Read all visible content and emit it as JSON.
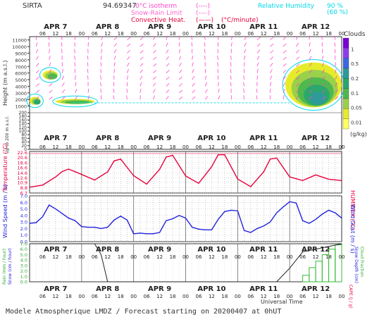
{
  "header": {
    "station": "SIRTA",
    "coords": "94.69347",
    "legend_left": [
      {
        "label": "0°C isotherm",
        "marker": "(----)",
        "color": "#ff44cc"
      },
      {
        "label": "Snow-Rain Limit",
        "marker": "(----)",
        "color": "#ff66cc"
      },
      {
        "label": "Convective Heat.",
        "marker": "(——)",
        "unit": "(°C/minute)",
        "color": "#e8003c"
      }
    ],
    "legend_right": [
      {
        "label": "Relative Humidity",
        "value": "90 %",
        "color": "#00d8e8"
      },
      {
        "label": "",
        "value": "(60 %)",
        "color": "#00d8e8"
      }
    ]
  },
  "days": [
    "APR 7",
    "APR 8",
    "APR 9",
    "APR 10",
    "APR 11",
    "APR 12"
  ],
  "hour_ticks": [
    "06",
    "12",
    "18",
    "00"
  ],
  "footer": {
    "title": "Modele Atmospherique LMDZ / Forecast starting on 20200407 at 0hUT",
    "xaxis": "Universal Time"
  },
  "colorbar": {
    "title": "Clouds",
    "unit": "(g/kg)",
    "ticks": [
      "1",
      "0.5",
      "0.2",
      "0.1",
      "0.05",
      "0.01"
    ],
    "colors": [
      "#7a00d8",
      "#8e3cf0",
      "#3a68e0",
      "#2e9a9a",
      "#2aa76c",
      "#4fb84f",
      "#9ad04a",
      "#e6ec2a",
      "#ffff60"
    ]
  },
  "panel_labels": {
    "height": "Height (m a.s.l.)",
    "height_low": "Up to 200 m a.s.l.",
    "temperature": "Temperature (°C)",
    "humidex": "HUMIDEX (°C)",
    "wind_speed": "Wind Speed (m / s)",
    "wind_gust": "Wind Gust (m / s)",
    "rain": "Rain (mm / hour)",
    "snow": "Snow (cm / hour)",
    "cape": "CAPE (J / g)",
    "snow_depth": "Snow Depth (cm)",
    "cloud_fraction": "Cloud Fraction"
  },
  "chart_data": [
    {
      "type": "heatmap",
      "title": "Clouds / Relative Humidity / Wind",
      "ylabel": "Height (m a.s.l.)",
      "yticks": [
        11000,
        10000,
        9000,
        8000,
        7000,
        6000,
        5000,
        4000,
        3000,
        2000,
        1000
      ],
      "yticks_low": [
        200,
        180,
        160,
        140,
        120,
        100,
        80,
        60,
        40,
        20,
        0
      ],
      "cloud_blobs": [
        {
          "t_start": 0,
          "t_end": 5,
          "h_bottom": 1200,
          "h_top": 2400,
          "level": 0.2
        },
        {
          "t_start": 12,
          "t_end": 30,
          "h_bottom": 1300,
          "h_top": 2100,
          "level": 0.05
        },
        {
          "t_start": 6,
          "t_end": 13,
          "h_bottom": 5000,
          "h_top": 6400,
          "level": 0.05
        },
        {
          "t_start": 118,
          "t_end": 144,
          "h_bottom": 800,
          "h_top": 7600,
          "level": 0.5
        }
      ]
    },
    {
      "type": "line",
      "ylabel": "Temperature (°C)",
      "ylim": [
        6.7,
        23
      ],
      "yticks": [
        6.7,
        8.8,
        10.9,
        12.6,
        14.6,
        16.6,
        18.6,
        20.6,
        22.6
      ],
      "x_hours": [
        0,
        6,
        12,
        15,
        18,
        24,
        30,
        36,
        39,
        42,
        48,
        54,
        60,
        63,
        66,
        72,
        78,
        84,
        87,
        90,
        96,
        102,
        108,
        111,
        114,
        120,
        126,
        132,
        138,
        144
      ],
      "series": [
        {
          "name": "Temperature",
          "color": "#e8003c",
          "values": [
            9.0,
            9.8,
            13.0,
            15.1,
            16.1,
            14.0,
            11.8,
            15.0,
            19.3,
            20.0,
            13.5,
            10.2,
            16.0,
            20.8,
            21.5,
            13.4,
            10.5,
            17.0,
            21.7,
            21.7,
            12.2,
            9.2,
            15.0,
            20.0,
            20.4,
            13.0,
            11.6,
            13.8,
            12.1,
            11.6
          ]
        }
      ]
    },
    {
      "type": "line",
      "ylabel": "Wind Speed (m / s)",
      "ylim": [
        0,
        7
      ],
      "yticks": [
        0,
        1,
        2,
        3,
        4,
        5,
        6,
        7
      ],
      "x_hours": [
        0,
        3,
        6,
        9,
        12,
        15,
        18,
        21,
        24,
        27,
        30,
        33,
        36,
        39,
        42,
        45,
        48,
        51,
        54,
        57,
        60,
        63,
        66,
        69,
        72,
        75,
        78,
        81,
        84,
        87,
        90,
        93,
        96,
        99,
        102,
        105,
        108,
        111,
        114,
        117,
        120,
        123,
        126,
        129,
        132,
        135,
        138,
        141,
        144
      ],
      "series": [
        {
          "name": "Wind Speed",
          "color": "#2222dd",
          "values": [
            2.8,
            2.9,
            3.8,
            5.6,
            5.0,
            4.3,
            3.6,
            3.2,
            2.3,
            2.2,
            2.2,
            2.0,
            2.2,
            3.3,
            3.9,
            3.3,
            1.2,
            1.3,
            1.2,
            1.2,
            1.4,
            3.2,
            3.5,
            4.0,
            3.6,
            2.2,
            1.9,
            1.8,
            1.8,
            3.4,
            4.6,
            4.8,
            4.7,
            1.7,
            1.4,
            2.0,
            2.4,
            3.0,
            4.4,
            5.3,
            6.1,
            5.9,
            3.2,
            2.8,
            3.4,
            4.2,
            4.8,
            4.4,
            3.6
          ]
        }
      ]
    },
    {
      "type": "bar",
      "ylabel": "Rain (mm / hour)",
      "ylim": [
        0,
        7
      ],
      "yticks": [
        0,
        1,
        2,
        3,
        4,
        5,
        6,
        7
      ],
      "series": [
        {
          "name": "Cloud Fraction",
          "color": "#33bb33",
          "x_hours": [
            126,
            129,
            132,
            135,
            138,
            141
          ],
          "values": [
            1.2,
            2.6,
            3.8,
            5.0,
            6.0,
            6.8
          ]
        }
      ],
      "cloud_fraction_line": {
        "x_hours": [
          0,
          30,
          33,
          36,
          108,
          114,
          120,
          126,
          144
        ],
        "values": [
          7,
          7,
          5,
          0,
          0,
          0,
          2.5,
          5.5,
          7
        ]
      }
    }
  ]
}
